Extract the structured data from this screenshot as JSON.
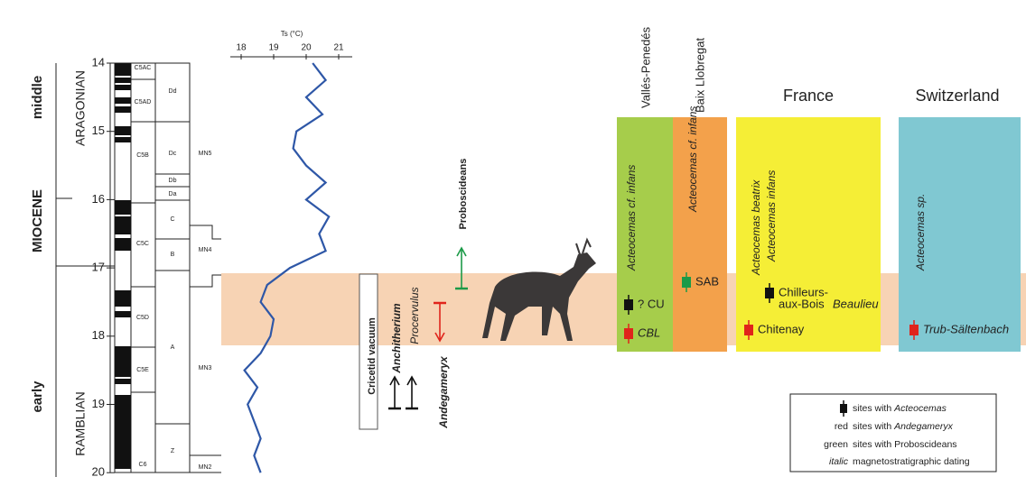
{
  "time_axis": {
    "ticks": [
      14,
      15,
      16,
      17,
      18,
      19,
      20
    ]
  },
  "epoch": "MIOCENE",
  "subepochs": [
    "middle",
    "early"
  ],
  "stages": [
    "ARAGONIAN",
    "RAMBLIAN"
  ],
  "chrons": [
    "C5AC",
    "C5AD",
    "C5B",
    "C5C",
    "C5D",
    "C5E",
    "C6"
  ],
  "subzones": [
    "Dd",
    "Dc",
    "Db",
    "Da",
    "C",
    "B",
    "A",
    "Z"
  ],
  "mn_zones": [
    "MN5",
    "MN4",
    "MN3",
    "MN2"
  ],
  "temperature": {
    "title": "Ts (°C)",
    "ticks": [
      18,
      19,
      20,
      21
    ],
    "color": "#2e57a7",
    "ages": [
      14,
      14.25,
      14.5,
      14.75,
      15,
      15.25,
      15.5,
      15.75,
      16,
      16.25,
      16.5,
      16.75,
      17,
      17.25,
      17.5,
      17.75,
      18,
      18.25,
      18.5,
      18.75,
      19,
      19.25,
      19.5,
      19.75,
      20
    ],
    "values": [
      20.2,
      20.6,
      20.0,
      20.5,
      19.7,
      19.6,
      20.0,
      20.6,
      20.0,
      20.7,
      20.4,
      20.6,
      19.5,
      18.8,
      18.6,
      19.0,
      18.9,
      18.6,
      18.1,
      18.5,
      18.2,
      18.4,
      18.6,
      18.4,
      18.6
    ]
  },
  "events": {
    "cricetid": "Cricetid vacuum",
    "anchitherium": "Anchitherium",
    "procervulus": "Procervulus",
    "andegameryx": "Andegameryx",
    "proboscideans": "Proboscideans"
  },
  "regions": [
    {
      "name": "Vallés-Penedés",
      "color": "#a6cd4b",
      "taxa": [
        "Acteocemas cf. infans"
      ],
      "sites": [
        {
          "label": [
            "? CU"
          ],
          "color": "#111111",
          "italic": false,
          "marker": true
        },
        {
          "label": [
            "CBL"
          ],
          "color": "#e0241b",
          "italic": true,
          "marker": true
        }
      ]
    },
    {
      "name": "Baix Llobregat",
      "color": "#f3a14b",
      "taxa": [
        "Acteocemas cf. infans"
      ],
      "sites": [
        {
          "label": [
            "SAB"
          ],
          "color": "#1c9a48",
          "italic": false,
          "marker": true
        }
      ]
    },
    {
      "name": "France",
      "color": "#f5ee36",
      "taxa": [
        "Acteocemas beatrix",
        "Acteocemas infans"
      ],
      "sites": [
        {
          "label": [
            "Chilleurs-",
            "aux-Bois"
          ],
          "color": "#111111",
          "italic": false,
          "marker": true
        },
        {
          "label": [
            "Beaulieu"
          ],
          "color": "#e0241b",
          "italic": true,
          "marker": false
        },
        {
          "label": [
            "Chitenay"
          ],
          "color": "#e0241b",
          "italic": false,
          "marker": true
        }
      ]
    },
    {
      "name": "Switzerland",
      "color": "#80c8d2",
      "taxa": [
        "Acteocemas sp."
      ],
      "sites": [
        {
          "label": [
            "Trub-Sältenbach"
          ],
          "color": "#e0241b",
          "italic": true,
          "marker": true
        }
      ]
    }
  ],
  "legend": [
    {
      "text": "sites with",
      "taxon": "Acteocemas"
    },
    {
      "key": "red",
      "key_color": "#e0241b",
      "text": "sites with",
      "taxon": "Andegameryx"
    },
    {
      "key": "green",
      "key_color": "#1c9a48",
      "text": "sites with Proboscideans"
    },
    {
      "key": "italic",
      "text": "magnetostratigraphic dating"
    }
  ]
}
